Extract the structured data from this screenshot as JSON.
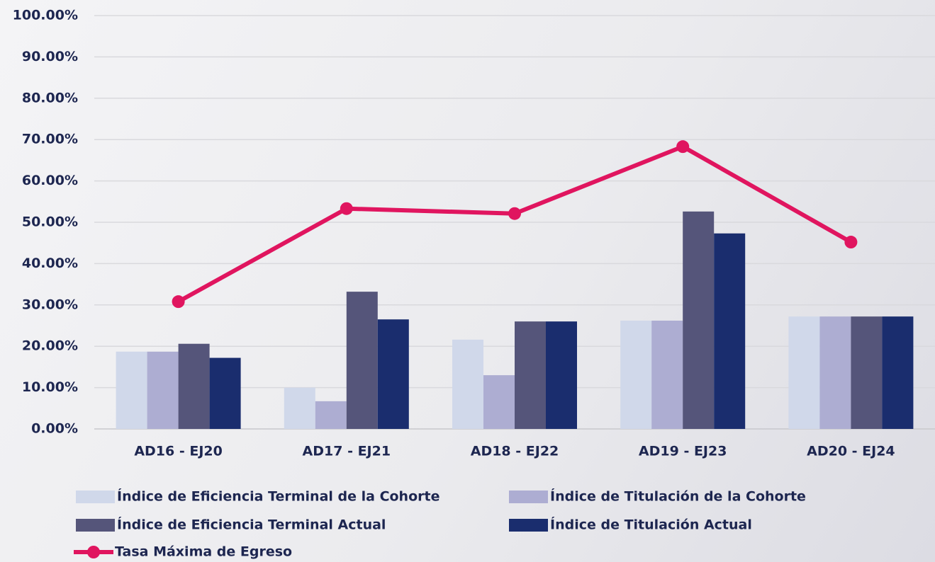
{
  "chart_data": {
    "type": "bar-line",
    "categories": [
      "AD16 - EJ20",
      "AD17 - EJ21",
      "AD18 - EJ22",
      "AD19 - EJ23",
      "AD20 - EJ24"
    ],
    "series": [
      {
        "name": "Índice de Eficiencia Terminal de la Cohorte",
        "type": "bar",
        "color": "#d0d8ea",
        "values": [
          18.7,
          10.0,
          21.6,
          26.2,
          27.2
        ]
      },
      {
        "name": "Índice de Titulación de la Cohorte",
        "type": "bar",
        "color": "#adadd2",
        "values": [
          18.7,
          6.7,
          13.0,
          26.2,
          27.2
        ]
      },
      {
        "name": "Índice de Eficiencia Terminal Actual",
        "type": "bar",
        "color": "#55557a",
        "values": [
          20.6,
          33.2,
          26.0,
          52.6,
          27.2
        ]
      },
      {
        "name": "Índice de Titulación Actual",
        "type": "bar",
        "color": "#1a2d6e",
        "values": [
          17.2,
          26.5,
          26.0,
          47.3,
          27.2
        ]
      },
      {
        "name": "Tasa Máxima de Egreso",
        "type": "line",
        "color": "#e0155f",
        "values": [
          30.8,
          53.3,
          52.1,
          68.3,
          45.2
        ]
      }
    ],
    "ylim": [
      0,
      100
    ],
    "yticks": [
      {
        "value": 0,
        "label": "0.00%"
      },
      {
        "value": 10,
        "label": "10.00%"
      },
      {
        "value": 20,
        "label": "20.00%"
      },
      {
        "value": 30,
        "label": "30.00%"
      },
      {
        "value": 40,
        "label": "40.00%"
      },
      {
        "value": 50,
        "label": "50.00%"
      },
      {
        "value": 60,
        "label": "60.00%"
      },
      {
        "value": 70,
        "label": "70.00%"
      },
      {
        "value": 80,
        "label": "80.00%"
      },
      {
        "value": 90,
        "label": "90.00%"
      },
      {
        "value": 100,
        "label": "100.00%"
      }
    ],
    "grid": true
  }
}
